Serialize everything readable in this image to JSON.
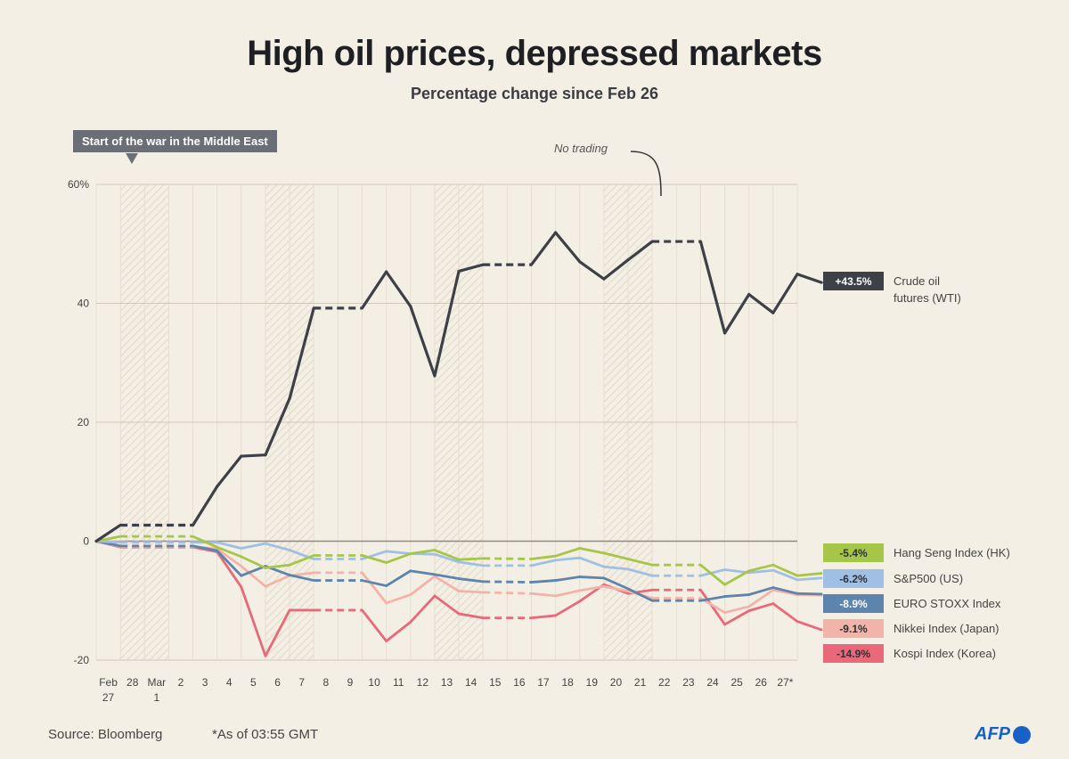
{
  "header": {
    "title": "High oil prices, depressed markets",
    "subtitle": "Percentage change since Feb 26"
  },
  "annotations": {
    "war_start": "Start of the war in the Middle East",
    "no_trading": "No trading"
  },
  "footer": {
    "source": "Source: Bloomberg",
    "footnote": "*As of 03:55 GMT",
    "logo": "AFP"
  },
  "chart_data": {
    "type": "line",
    "title": "High oil prices, depressed markets",
    "subtitle": "Percentage change since Feb 26",
    "ylim": [
      -20,
      60
    ],
    "yticks": [
      -20,
      0,
      20,
      40,
      60
    ],
    "ytick_labels": [
      "-20",
      "0",
      "20",
      "40",
      "60%"
    ],
    "x_labels": [
      {
        "top": "Feb",
        "bottom": "27"
      },
      {
        "top": "28",
        "bottom": ""
      },
      {
        "top": "Mar",
        "bottom": "1"
      },
      {
        "top": "2",
        "bottom": ""
      },
      {
        "top": "3",
        "bottom": ""
      },
      {
        "top": "4",
        "bottom": ""
      },
      {
        "top": "5",
        "bottom": ""
      },
      {
        "top": "6",
        "bottom": ""
      },
      {
        "top": "7",
        "bottom": ""
      },
      {
        "top": "8",
        "bottom": ""
      },
      {
        "top": "9",
        "bottom": ""
      },
      {
        "top": "10",
        "bottom": ""
      },
      {
        "top": "11",
        "bottom": ""
      },
      {
        "top": "12",
        "bottom": ""
      },
      {
        "top": "13",
        "bottom": ""
      },
      {
        "top": "14",
        "bottom": ""
      },
      {
        "top": "15",
        "bottom": ""
      },
      {
        "top": "16",
        "bottom": ""
      },
      {
        "top": "17",
        "bottom": ""
      },
      {
        "top": "18",
        "bottom": ""
      },
      {
        "top": "19",
        "bottom": ""
      },
      {
        "top": "20",
        "bottom": ""
      },
      {
        "top": "21",
        "bottom": ""
      },
      {
        "top": "22",
        "bottom": ""
      },
      {
        "top": "23",
        "bottom": ""
      },
      {
        "top": "24",
        "bottom": ""
      },
      {
        "top": "25",
        "bottom": ""
      },
      {
        "top": "26",
        "bottom": ""
      },
      {
        "top": "27*",
        "bottom": ""
      }
    ],
    "no_trading_days": [
      "28",
      "Mar 1",
      "7",
      "8",
      "14",
      "15",
      "21",
      "22"
    ],
    "series": [
      {
        "name": "Crude oil futures (WTI)",
        "label_lines": [
          "Crude oil",
          "futures (WTI)"
        ],
        "end_label": "+43.5%",
        "color": "#3d4047",
        "badge_text_color": "#ffffff",
        "points": [
          [
            "Feb 26",
            0
          ],
          [
            "Feb 27",
            2.7
          ],
          [
            "Mar 2",
            2.7
          ],
          [
            "Mar 3",
            9.2
          ],
          [
            "Mar 4",
            14.3
          ],
          [
            "Mar 5",
            14.5
          ],
          [
            "Mar 6",
            24.0
          ],
          [
            "Mar 7",
            39.2
          ],
          [
            "Mar 9",
            39.2
          ],
          [
            "Mar 10",
            45.3
          ],
          [
            "Mar 11",
            39.5
          ],
          [
            "Mar 12",
            27.8
          ],
          [
            "Mar 13",
            45.4
          ],
          [
            "Mar 14",
            46.5
          ],
          [
            "Mar 16",
            46.5
          ],
          [
            "Mar 17",
            51.9
          ],
          [
            "Mar 18",
            47.0
          ],
          [
            "Mar 19",
            44.1
          ],
          [
            "Mar 20",
            47.3
          ],
          [
            "Mar 21",
            50.4
          ],
          [
            "Mar 23",
            50.4
          ],
          [
            "Mar 24",
            35.0
          ],
          [
            "Mar 25",
            41.5
          ],
          [
            "Mar 26",
            38.4
          ],
          [
            "Mar 27",
            44.9
          ],
          [
            "Mar 28",
            43.5
          ]
        ]
      },
      {
        "name": "Hang Seng Index (HK)",
        "label_lines": [
          "Hang Seng Index (HK)"
        ],
        "end_label": "-5.4%",
        "color": "#a6c64a",
        "badge_text_color": "#2e3035",
        "points": [
          [
            "Feb 26",
            0
          ],
          [
            "Feb 27",
            0.8
          ],
          [
            "Mar 2",
            0.8
          ],
          [
            "Mar 3",
            -1.0
          ],
          [
            "Mar 4",
            -2.6
          ],
          [
            "Mar 5",
            -4.5
          ],
          [
            "Mar 6",
            -4.0
          ],
          [
            "Mar 7",
            -2.4
          ],
          [
            "Mar 9",
            -2.4
          ],
          [
            "Mar 10",
            -3.6
          ],
          [
            "Mar 11",
            -2.1
          ],
          [
            "Mar 12",
            -1.5
          ],
          [
            "Mar 13",
            -3.1
          ],
          [
            "Mar 14",
            -2.9
          ],
          [
            "Mar 16",
            -3.0
          ],
          [
            "Mar 17",
            -2.5
          ],
          [
            "Mar 18",
            -1.2
          ],
          [
            "Mar 19",
            -2.0
          ],
          [
            "Mar 20",
            -3.0
          ],
          [
            "Mar 21",
            -4.0
          ],
          [
            "Mar 23",
            -4.0
          ],
          [
            "Mar 24",
            -7.3
          ],
          [
            "Mar 25",
            -5.0
          ],
          [
            "Mar 26",
            -4.0
          ],
          [
            "Mar 27",
            -5.8
          ],
          [
            "Mar 28",
            -5.4
          ]
        ]
      },
      {
        "name": "S&P500 (US)",
        "label_lines": [
          "S&P500 (US)"
        ],
        "end_label": "-6.2%",
        "color": "#9fc0e4",
        "badge_text_color": "#2e3035",
        "points": [
          [
            "Feb 26",
            0
          ],
          [
            "Feb 27",
            -0.2
          ],
          [
            "Mar 2",
            -0.2
          ],
          [
            "Mar 3",
            -0.2
          ],
          [
            "Mar 4",
            -1.2
          ],
          [
            "Mar 5",
            -0.4
          ],
          [
            "Mar 6",
            -1.5
          ],
          [
            "Mar 7",
            -3.0
          ],
          [
            "Mar 9",
            -3.0
          ],
          [
            "Mar 10",
            -1.7
          ],
          [
            "Mar 11",
            -2.1
          ],
          [
            "Mar 12",
            -2.2
          ],
          [
            "Mar 13",
            -3.5
          ],
          [
            "Mar 14",
            -4.1
          ],
          [
            "Mar 16",
            -4.1
          ],
          [
            "Mar 17",
            -3.2
          ],
          [
            "Mar 18",
            -2.8
          ],
          [
            "Mar 19",
            -4.3
          ],
          [
            "Mar 20",
            -4.7
          ],
          [
            "Mar 21",
            -5.8
          ],
          [
            "Mar 23",
            -5.8
          ],
          [
            "Mar 24",
            -4.8
          ],
          [
            "Mar 25",
            -5.3
          ],
          [
            "Mar 26",
            -4.9
          ],
          [
            "Mar 27",
            -6.5
          ],
          [
            "Mar 28",
            -6.2
          ]
        ]
      },
      {
        "name": "EURO STOXX Index",
        "label_lines": [
          "EURO STOXX Index"
        ],
        "end_label": "-8.9%",
        "color": "#5d84ac",
        "badge_text_color": "#ffffff",
        "points": [
          [
            "Feb 26",
            0
          ],
          [
            "Feb 27",
            -0.8
          ],
          [
            "Mar 2",
            -0.8
          ],
          [
            "Mar 3",
            -1.6
          ],
          [
            "Mar 4",
            -5.8
          ],
          [
            "Mar 5",
            -4.2
          ],
          [
            "Mar 6",
            -5.7
          ],
          [
            "Mar 7",
            -6.6
          ],
          [
            "Mar 9",
            -6.6
          ],
          [
            "Mar 10",
            -7.5
          ],
          [
            "Mar 11",
            -5.0
          ],
          [
            "Mar 12",
            -5.6
          ],
          [
            "Mar 13",
            -6.3
          ],
          [
            "Mar 14",
            -6.8
          ],
          [
            "Mar 16",
            -6.9
          ],
          [
            "Mar 17",
            -6.6
          ],
          [
            "Mar 18",
            -6.0
          ],
          [
            "Mar 19",
            -6.2
          ],
          [
            "Mar 20",
            -8.0
          ],
          [
            "Mar 21",
            -10.0
          ],
          [
            "Mar 23",
            -10.0
          ],
          [
            "Mar 24",
            -9.3
          ],
          [
            "Mar 25",
            -9.0
          ],
          [
            "Mar 26",
            -7.8
          ],
          [
            "Mar 27",
            -8.8
          ],
          [
            "Mar 28",
            -8.9
          ]
        ]
      },
      {
        "name": "Nikkei Index (Japan)",
        "label_lines": [
          "Nikkei Index (Japan)"
        ],
        "end_label": "-9.1%",
        "color": "#f2b4a8",
        "badge_text_color": "#2e3035",
        "points": [
          [
            "Feb 26",
            0
          ],
          [
            "Feb 27",
            -0.9
          ],
          [
            "Mar 2",
            -0.9
          ],
          [
            "Mar 3",
            -1.3
          ],
          [
            "Mar 4",
            -4.2
          ],
          [
            "Mar 5",
            -7.6
          ],
          [
            "Mar 6",
            -5.8
          ],
          [
            "Mar 7",
            -5.3
          ],
          [
            "Mar 9",
            -5.3
          ],
          [
            "Mar 10",
            -10.4
          ],
          [
            "Mar 11",
            -9.0
          ],
          [
            "Mar 12",
            -5.9
          ],
          [
            "Mar 13",
            -8.4
          ],
          [
            "Mar 14",
            -8.6
          ],
          [
            "Mar 16",
            -8.8
          ],
          [
            "Mar 17",
            -9.2
          ],
          [
            "Mar 18",
            -8.3
          ],
          [
            "Mar 19",
            -7.6
          ],
          [
            "Mar 20",
            -8.4
          ],
          [
            "Mar 21",
            -9.6
          ],
          [
            "Mar 23",
            -9.6
          ],
          [
            "Mar 24",
            -12.0
          ],
          [
            "Mar 25",
            -11.0
          ],
          [
            "Mar 26",
            -8.2
          ],
          [
            "Mar 27",
            -9.0
          ],
          [
            "Mar 28",
            -9.1
          ]
        ]
      },
      {
        "name": "Kospi Index (Korea)",
        "label_lines": [
          "Kospi Index (Korea)"
        ],
        "end_label": "-14.9%",
        "color": "#e9697a",
        "badge_text_color": "#2e3035",
        "points": [
          [
            "Feb 26",
            0
          ],
          [
            "Feb 27",
            -1.0
          ],
          [
            "Mar 2",
            -1.0
          ],
          [
            "Mar 3",
            -1.8
          ],
          [
            "Mar 4",
            -7.7
          ],
          [
            "Mar 5",
            -19.3
          ],
          [
            "Mar 6",
            -11.6
          ],
          [
            "Mar 7",
            -11.6
          ],
          [
            "Mar 9",
            -11.6
          ],
          [
            "Mar 10",
            -16.8
          ],
          [
            "Mar 11",
            -13.6
          ],
          [
            "Mar 12",
            -9.2
          ],
          [
            "Mar 13",
            -12.2
          ],
          [
            "Mar 14",
            -12.9
          ],
          [
            "Mar 16",
            -12.9
          ],
          [
            "Mar 17",
            -12.5
          ],
          [
            "Mar 18",
            -10.1
          ],
          [
            "Mar 19",
            -7.3
          ],
          [
            "Mar 20",
            -8.8
          ],
          [
            "Mar 21",
            -8.2
          ],
          [
            "Mar 23",
            -8.2
          ],
          [
            "Mar 24",
            -14.0
          ],
          [
            "Mar 25",
            -11.7
          ],
          [
            "Mar 26",
            -10.5
          ],
          [
            "Mar 27",
            -13.5
          ],
          [
            "Mar 28",
            -14.9
          ]
        ]
      }
    ],
    "grid": true,
    "legend": "right"
  }
}
